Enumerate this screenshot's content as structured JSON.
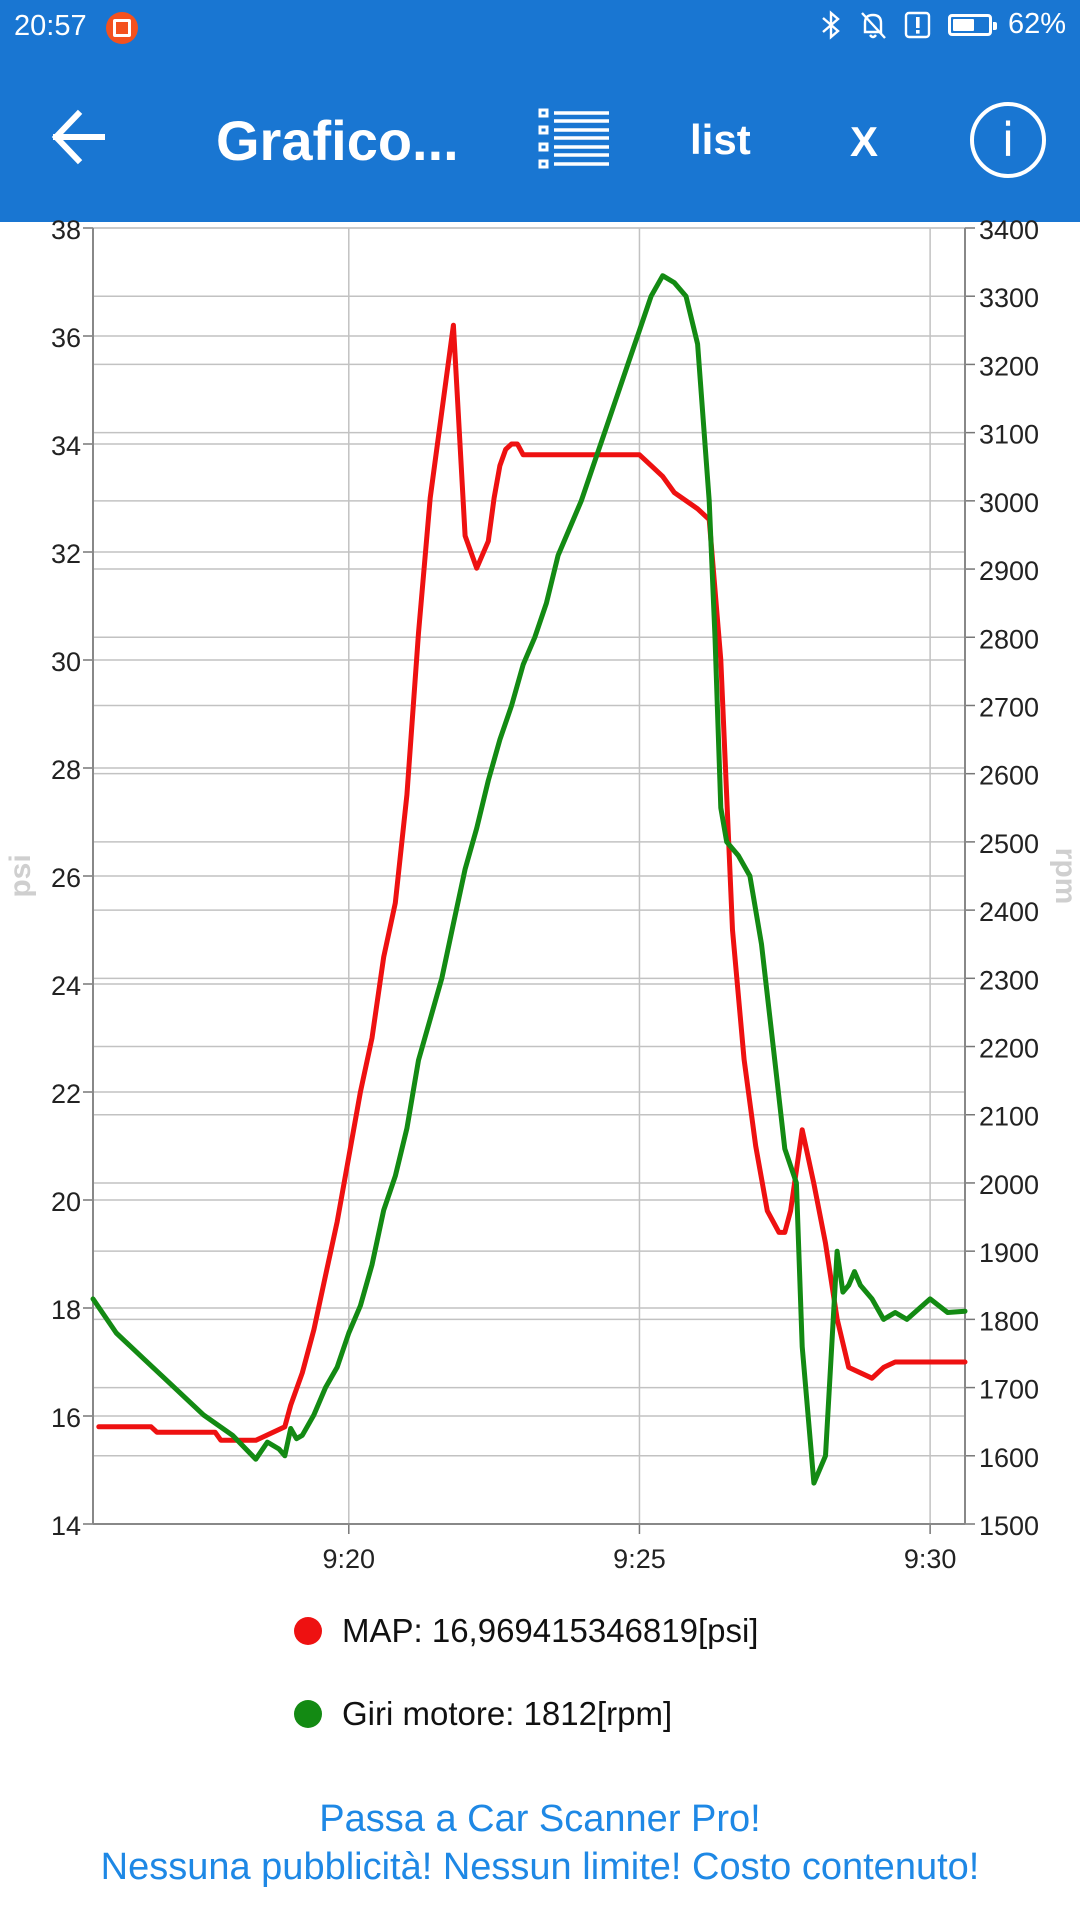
{
  "status_bar": {
    "time": "20:57",
    "battery_text": "62%",
    "battery_level": 0.62
  },
  "toolbar": {
    "back_icon": "arrow-left-icon",
    "title": "Grafico...",
    "list_icon": "checklist-icon",
    "list_label": "list",
    "close_label": "X",
    "info_icon": "info-circle-icon"
  },
  "chart_data": {
    "type": "line",
    "x_ticks": [
      "9:20",
      "9:25",
      "9:30"
    ],
    "x_tick_minutes": [
      20,
      25,
      30
    ],
    "xlim": [
      15.6,
      30.6
    ],
    "ylabel_left": "psi",
    "ylabel_right": "rpm",
    "y_left_ticks": [
      "14",
      "16",
      "18",
      "20",
      "22",
      "24",
      "26",
      "28",
      "30",
      "32",
      "34",
      "36",
      "38"
    ],
    "y_right_ticks": [
      "1500",
      "1600",
      "1700",
      "1800",
      "1900",
      "2000",
      "2100",
      "2200",
      "2300",
      "2400",
      "2500",
      "2600",
      "2700",
      "2800",
      "2900",
      "3000",
      "3100",
      "3200",
      "3300",
      "3400"
    ],
    "ylim_left": [
      14,
      38
    ],
    "ylim_right": [
      1500,
      3400
    ],
    "grid": true,
    "series": [
      {
        "name": "MAP",
        "unit": "psi",
        "axis": "left",
        "color": "#ee1111",
        "current_value_text": "MAP: 16,969415346819[psi]",
        "x": [
          15.7,
          16.6,
          16.7,
          17.7,
          17.8,
          18.4,
          18.5,
          18.9,
          19.0,
          19.2,
          19.4,
          19.6,
          19.8,
          20.0,
          20.2,
          20.4,
          20.6,
          20.8,
          21.0,
          21.2,
          21.4,
          21.6,
          21.8,
          22.0,
          22.2,
          22.4,
          22.5,
          22.6,
          22.7,
          22.8,
          22.9,
          23.0,
          23.2,
          23.4,
          23.6,
          23.8,
          24.2,
          25.0,
          25.2,
          25.4,
          25.6,
          26.0,
          26.2,
          26.4,
          26.6,
          26.8,
          27.0,
          27.2,
          27.4,
          27.5,
          27.6,
          27.8,
          28.0,
          28.2,
          28.4,
          28.6,
          28.8,
          29.0,
          29.2,
          29.4,
          30.6
        ],
        "y": [
          15.8,
          15.8,
          15.7,
          15.7,
          15.55,
          15.55,
          15.6,
          15.8,
          16.2,
          16.8,
          17.6,
          18.6,
          19.6,
          20.8,
          22.0,
          23.0,
          24.5,
          25.5,
          27.5,
          30.5,
          33.0,
          34.6,
          36.2,
          32.3,
          31.7,
          32.2,
          33.0,
          33.6,
          33.9,
          34.0,
          34.0,
          33.8,
          33.8,
          33.8,
          33.8,
          33.8,
          33.8,
          33.8,
          33.6,
          33.4,
          33.1,
          32.8,
          32.6,
          30.0,
          25.0,
          22.6,
          21.0,
          19.8,
          19.4,
          19.4,
          19.8,
          21.3,
          20.3,
          19.2,
          17.8,
          16.9,
          16.8,
          16.7,
          16.9,
          17.0,
          17.0
        ]
      },
      {
        "name": "Giri motore",
        "unit": "rpm",
        "axis": "right",
        "color": "#138a13",
        "current_value_text": "Giri motore: 1812[rpm]",
        "x": [
          15.6,
          16.0,
          16.5,
          17.0,
          17.5,
          18.0,
          18.4,
          18.6,
          18.8,
          18.9,
          19.0,
          19.1,
          19.2,
          19.4,
          19.6,
          19.8,
          20.0,
          20.2,
          20.4,
          20.6,
          20.8,
          21.0,
          21.2,
          21.4,
          21.6,
          21.8,
          22.0,
          22.2,
          22.4,
          22.6,
          22.8,
          23.0,
          23.2,
          23.4,
          23.6,
          23.8,
          24.0,
          24.2,
          24.4,
          24.6,
          24.8,
          25.0,
          25.2,
          25.4,
          25.6,
          25.8,
          26.0,
          26.2,
          26.3,
          26.4,
          26.5,
          26.7,
          26.9,
          27.1,
          27.3,
          27.5,
          27.7,
          27.8,
          28.0,
          28.2,
          28.4,
          28.5,
          28.6,
          28.7,
          28.8,
          29.0,
          29.2,
          29.4,
          29.6,
          30.0,
          30.3,
          30.6
        ],
        "y": [
          1830,
          1780,
          1740,
          1700,
          1660,
          1630,
          1595,
          1620,
          1610,
          1600,
          1640,
          1625,
          1630,
          1660,
          1700,
          1730,
          1780,
          1820,
          1880,
          1960,
          2010,
          2080,
          2180,
          2240,
          2300,
          2380,
          2460,
          2520,
          2590,
          2650,
          2700,
          2760,
          2800,
          2850,
          2920,
          2960,
          3000,
          3050,
          3100,
          3150,
          3200,
          3250,
          3300,
          3330,
          3320,
          3300,
          3230,
          3000,
          2800,
          2550,
          2500,
          2480,
          2450,
          2350,
          2200,
          2050,
          2000,
          1760,
          1560,
          1600,
          1900,
          1840,
          1850,
          1870,
          1850,
          1830,
          1800,
          1810,
          1800,
          1830,
          1810,
          1812
        ]
      }
    ]
  },
  "promo": {
    "line1": "Passa a Car Scanner Pro!",
    "line2": "Nessuna pubblicità! Nessun limite! Costo contenuto!"
  }
}
